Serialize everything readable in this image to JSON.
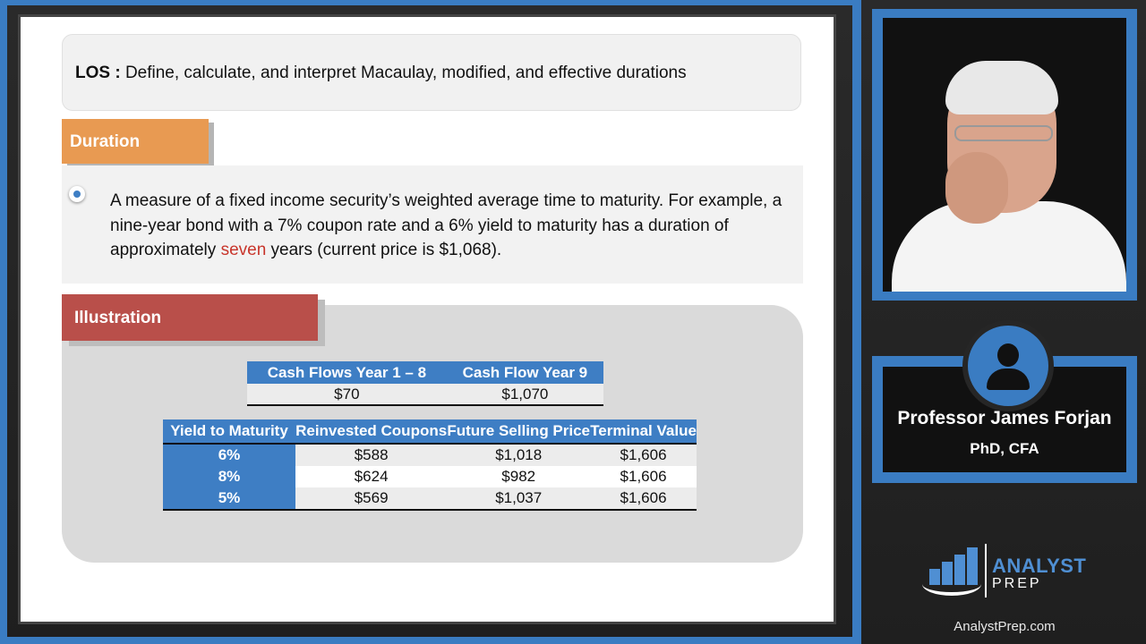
{
  "los": {
    "label": "LOS :",
    "text": "Define, calculate, and interpret Macaulay, modified, and effective durations"
  },
  "duration": {
    "tab_label": "Duration",
    "text_before": "A measure of a fixed income security’s weighted average time to maturity.  For example, a nine-year bond with a 7% coupon rate and a 6% yield to maturity has a duration of approximately ",
    "highlight": "seven",
    "text_after": " years (current price is $1,068).",
    "highlight_color": "#c8352b"
  },
  "illustration": {
    "tab_label": "Illustration",
    "cash_flow_table": {
      "headers": [
        "Cash Flows Year 1 – 8",
        "Cash Flow Year 9"
      ],
      "row": [
        "$70",
        "$1,070"
      ]
    },
    "ytm_table": {
      "headers": [
        "Yield to Maturity",
        "Reinvested Coupons",
        "Future Selling Price",
        "Terminal Value"
      ],
      "rows": [
        [
          "6%",
          "$588",
          "$1,018",
          "$1,606"
        ],
        [
          "8%",
          "$624",
          "$982",
          "$1,606"
        ],
        [
          "5%",
          "$569",
          "$1,037",
          "$1,606"
        ]
      ]
    }
  },
  "presenter": {
    "name": "Professor James Forjan",
    "credentials": "PhD, CFA"
  },
  "brand": {
    "logo_title": "ANALYST",
    "logo_sub": "PREP",
    "site": "AnalystPrep.com",
    "accent": "#3a7cc2"
  }
}
